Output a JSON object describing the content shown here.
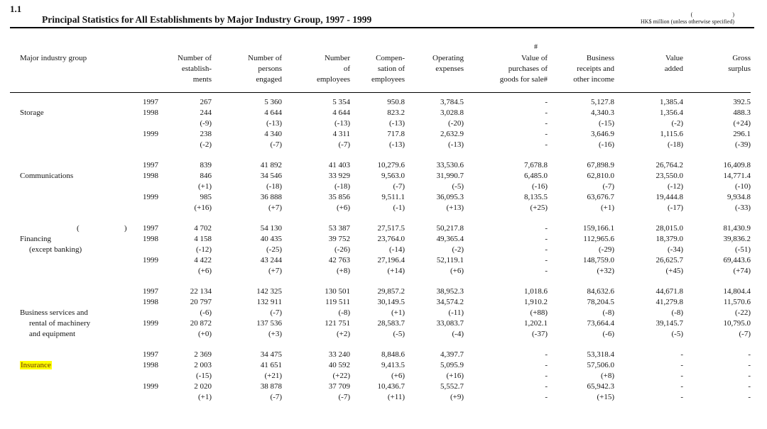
{
  "page": {
    "section_number": "1.1",
    "title": "Principal Statistics for All Establishments by Major Industry Group, 1997 - 1999",
    "unit_note_top": "(                            )",
    "unit_note": "HK$ million (unless otherwise specified)"
  },
  "highlight": {
    "background": "#ffff00",
    "color": "#6b3305"
  },
  "table": {
    "row_header": "Major industry group",
    "columns": [
      {
        "lines": [
          "Number of",
          "establish-",
          "ments"
        ]
      },
      {
        "lines": [
          "Number of",
          "persons",
          "engaged"
        ]
      },
      {
        "lines": [
          "Number",
          "of",
          "employees"
        ]
      },
      {
        "lines": [
          "Compen-",
          "sation of",
          "employees"
        ]
      },
      {
        "lines": [
          "Operating",
          "expenses"
        ]
      },
      {
        "lines": [
          "Value of",
          "purchases of",
          "goods for sale#"
        ],
        "hash": "#"
      },
      {
        "lines": [
          "Business",
          "receipts and",
          "other income"
        ]
      },
      {
        "lines": [
          "Value",
          "added"
        ]
      },
      {
        "lines": [
          "Gross",
          "surplus"
        ]
      }
    ],
    "groups": [
      {
        "label_lines": [
          {
            "t": ""
          },
          {
            "t": "Storage"
          },
          {
            "t": ""
          },
          {
            "t": ""
          },
          {
            "t": ""
          }
        ],
        "rows": [
          {
            "year": "1997",
            "values": [
              "267",
              "5 360",
              "5 354",
              "950.8",
              "3,784.5",
              "-",
              "5,127.8",
              "1,385.4",
              "392.5"
            ]
          },
          {
            "year": "1998",
            "values": [
              "244",
              "4 644",
              "4 644",
              "823.2",
              "3,028.8",
              "-",
              "4,340.3",
              "1,356.4",
              "488.3"
            ]
          },
          {
            "year": "",
            "values": [
              "(-9)",
              "(-13)",
              "(-13)",
              "(-13)",
              "(-20)",
              "-",
              "(-15)",
              "(-2)",
              "(+24)"
            ]
          },
          {
            "year": "1999",
            "values": [
              "238",
              "4 340",
              "4 311",
              "717.8",
              "2,632.9",
              "-",
              "3,646.9",
              "1,115.6",
              "296.1"
            ]
          },
          {
            "year": "",
            "values": [
              "(-2)",
              "(-7)",
              "(-7)",
              "(-13)",
              "(-13)",
              "-",
              "(-16)",
              "(-18)",
              "(-39)"
            ]
          }
        ]
      },
      {
        "label_lines": [
          {
            "t": ""
          },
          {
            "t": "Communications"
          },
          {
            "t": ""
          },
          {
            "t": ""
          },
          {
            "t": ""
          }
        ],
        "rows": [
          {
            "year": "1997",
            "values": [
              "839",
              "41 892",
              "41 403",
              "10,279.6",
              "33,530.6",
              "7,678.8",
              "67,898.9",
              "26,764.2",
              "16,409.8"
            ]
          },
          {
            "year": "1998",
            "values": [
              "846",
              "34 546",
              "33 929",
              "9,563.0",
              "31,990.7",
              "6,485.0",
              "62,810.0",
              "23,550.0",
              "14,771.4"
            ]
          },
          {
            "year": "",
            "values": [
              "(+1)",
              "(-18)",
              "(-18)",
              "(-7)",
              "(-5)",
              "(-16)",
              "(-7)",
              "(-12)",
              "(-10)"
            ]
          },
          {
            "year": "1999",
            "values": [
              "985",
              "36 888",
              "35 856",
              "9,511.1",
              "36,095.3",
              "8,135.5",
              "63,676.7",
              "19,444.8",
              "9,934.8"
            ]
          },
          {
            "year": "",
            "values": [
              "(+16)",
              "(+7)",
              "(+6)",
              "(-1)",
              "(+13)",
              "(+25)",
              "(+1)",
              "(-17)",
              "(-33)"
            ]
          }
        ]
      },
      {
        "label_lines": [
          {
            "t": "(                       )",
            "ind": 80
          },
          {
            "t": "Financing"
          },
          {
            "t": "(except banking)",
            "ind": 13
          },
          {
            "t": ""
          },
          {
            "t": ""
          }
        ],
        "rows": [
          {
            "year": "1997",
            "values": [
              "4 702",
              "54 130",
              "53 387",
              "27,517.5",
              "50,217.8",
              "-",
              "159,166.1",
              "28,015.0",
              "81,430.9"
            ]
          },
          {
            "year": "1998",
            "values": [
              "4 158",
              "40 435",
              "39 752",
              "23,764.0",
              "49,365.4",
              "-",
              "112,965.6",
              "18,379.0",
              "39,836.2"
            ]
          },
          {
            "year": "",
            "values": [
              "(-12)",
              "(-25)",
              "(-26)",
              "(-14)",
              "(-2)",
              "-",
              "(-29)",
              "(-34)",
              "(-51)"
            ]
          },
          {
            "year": "1999",
            "values": [
              "4 422",
              "43 244",
              "42 763",
              "27,196.4",
              "52,119.1",
              "-",
              "148,759.0",
              "26,625.7",
              "69,443.6"
            ]
          },
          {
            "year": "",
            "values": [
              "(+6)",
              "(+7)",
              "(+8)",
              "(+14)",
              "(+6)",
              "-",
              "(+32)",
              "(+45)",
              "(+74)"
            ]
          }
        ]
      },
      {
        "label_lines": [
          {
            "t": ""
          },
          {
            "t": ""
          },
          {
            "t": "Business services and"
          },
          {
            "t": "rental of machinery",
            "ind": 13
          },
          {
            "t": "and equipment",
            "ind": 13
          }
        ],
        "rows": [
          {
            "year": "1997",
            "values": [
              "22 134",
              "142 325",
              "130 501",
              "29,857.2",
              "38,952.3",
              "1,018.6",
              "84,632.6",
              "44,671.8",
              "14,804.4"
            ]
          },
          {
            "year": "1998",
            "values": [
              "20 797",
              "132 911",
              "119 511",
              "30,149.5",
              "34,574.2",
              "1,910.2",
              "78,204.5",
              "41,279.8",
              "11,570.6"
            ]
          },
          {
            "year": "",
            "values": [
              "(-6)",
              "(-7)",
              "(-8)",
              "(+1)",
              "(-11)",
              "(+88)",
              "(-8)",
              "(-8)",
              "(-22)"
            ]
          },
          {
            "year": "1999",
            "values": [
              "20 872",
              "137 536",
              "121 751",
              "28,583.7",
              "33,083.7",
              "1,202.1",
              "73,664.4",
              "39,145.7",
              "10,795.0"
            ]
          },
          {
            "year": "",
            "values": [
              "(+0)",
              "(+3)",
              "(+2)",
              "(-5)",
              "(-4)",
              "(-37)",
              "(-6)",
              "(-5)",
              "(-7)"
            ]
          }
        ]
      },
      {
        "label_lines": [
          {
            "t": ""
          },
          {
            "t": "Insurance",
            "hl": true
          },
          {
            "t": ""
          },
          {
            "t": ""
          },
          {
            "t": ""
          }
        ],
        "rows": [
          {
            "year": "1997",
            "values": [
              "2 369",
              "34 475",
              "33 240",
              "8,848.6",
              "4,397.7",
              "-",
              "53,318.4",
              "-",
              "-"
            ]
          },
          {
            "year": "1998",
            "values": [
              "2 003",
              "41 651",
              "40 592",
              "9,413.5",
              "5,095.9",
              "-",
              "57,506.0",
              "-",
              "-"
            ]
          },
          {
            "year": "",
            "values": [
              "(-15)",
              "(+21)",
              "(+22)",
              "(+6)",
              "(+16)",
              "-",
              "(+8)",
              "-",
              "-"
            ]
          },
          {
            "year": "1999",
            "values": [
              "2 020",
              "38 878",
              "37 709",
              "10,436.7",
              "5,552.7",
              "-",
              "65,942.3",
              "-",
              "-"
            ]
          },
          {
            "year": "",
            "values": [
              "(+1)",
              "(-7)",
              "(-7)",
              "(+11)",
              "(+9)",
              "-",
              "(+15)",
              "-",
              "-"
            ]
          }
        ]
      }
    ]
  }
}
